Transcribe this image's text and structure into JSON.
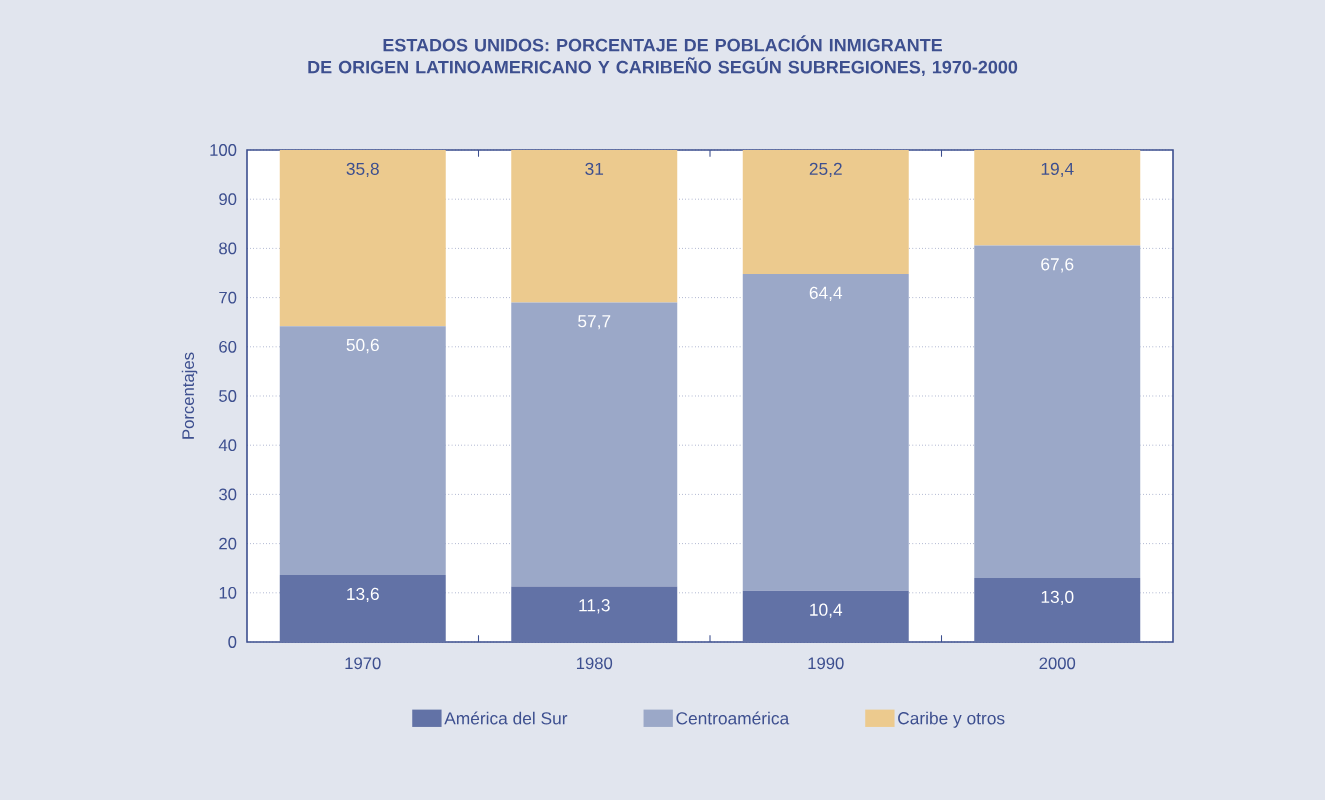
{
  "chart_data": {
    "type": "bar",
    "stacked": true,
    "title": "ESTADOS UNIDOS: PORCENTAJE DE POBLACIÓN INMIGRANTE\nDE ORIGEN LATINOAMERICANO Y CARIBEÑO SEGÚN SUBREGIONES, 1970-2000",
    "ylabel": "Porcentajes",
    "categories": [
      "1970",
      "1980",
      "1990",
      "2000"
    ],
    "series": [
      {
        "name": "América del Sur",
        "color": "#6272a6",
        "values": [
          13.6,
          11.3,
          10.4,
          13.0
        ],
        "value_labels": [
          "13,6",
          "11,3",
          "10,4",
          "13,0"
        ]
      },
      {
        "name": "Centroamérica",
        "color": "#9ba8c8",
        "values": [
          50.6,
          57.7,
          64.4,
          67.6
        ],
        "value_labels": [
          "50,6",
          "57,7",
          "64,4",
          "67,6"
        ]
      },
      {
        "name": "Caribe y otros",
        "color": "#ecca8e",
        "values": [
          35.8,
          31,
          25.2,
          19.4
        ],
        "value_labels": [
          "35,8",
          "31",
          "25,2",
          "19,4"
        ]
      }
    ],
    "ylim": [
      0,
      100
    ],
    "yticks": [
      0,
      10,
      20,
      30,
      40,
      50,
      60,
      70,
      80,
      90,
      100
    ],
    "grid": "y",
    "legend": "bottom"
  }
}
